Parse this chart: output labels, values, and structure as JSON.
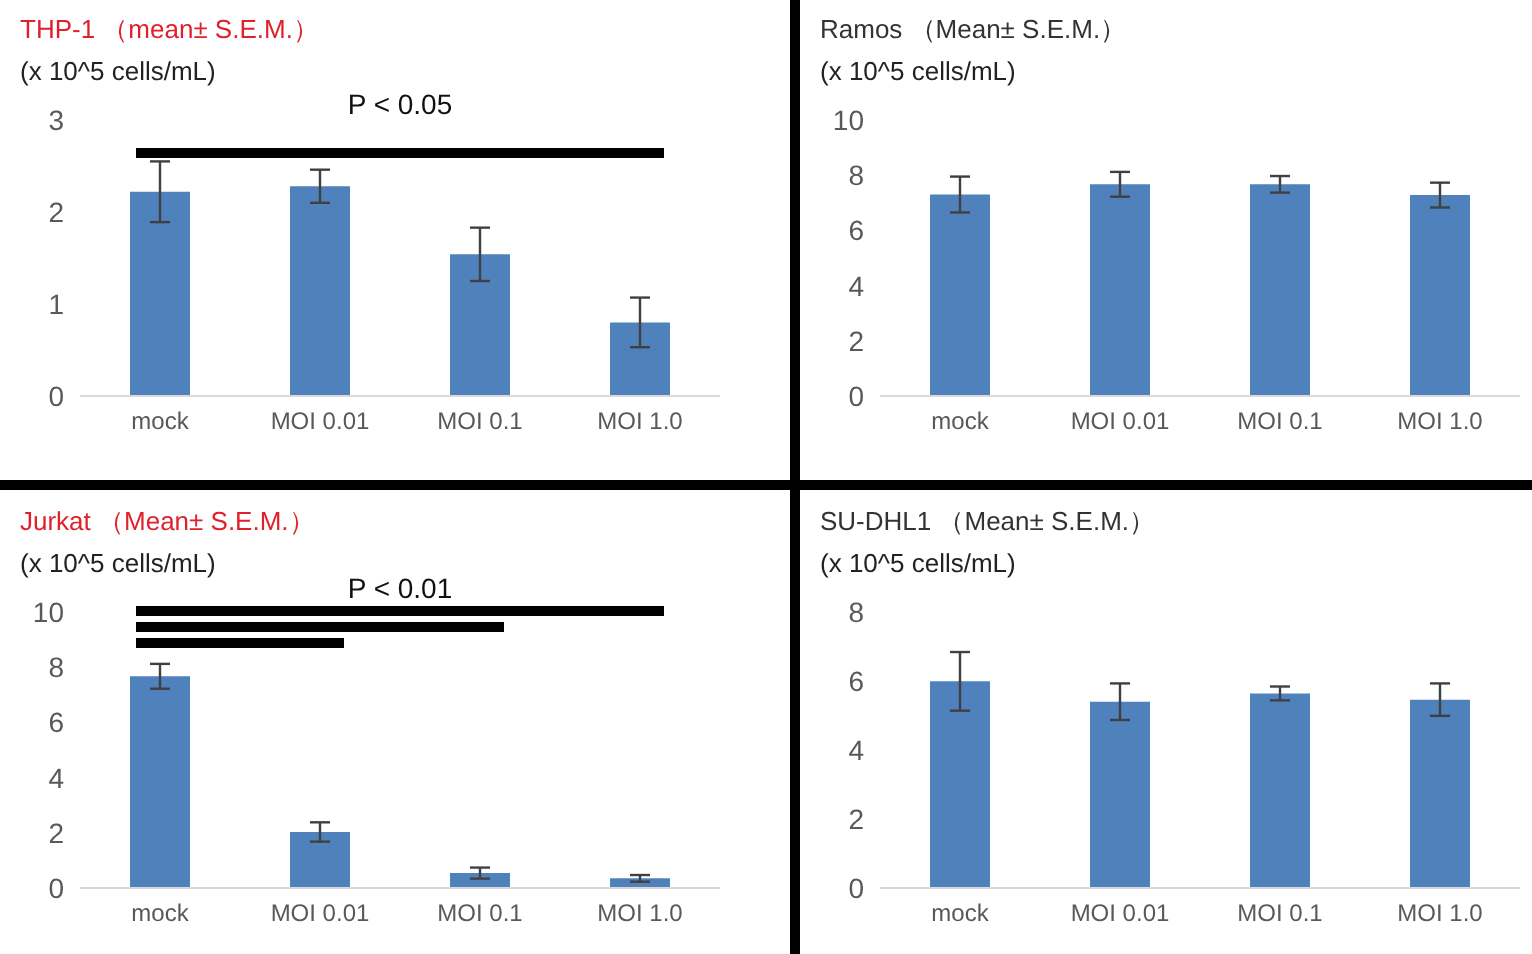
{
  "chart_data": [
    {
      "type": "bar",
      "title": "THP-1 （mean± S.E.M.）",
      "ylabel": "(x 10^5 cells/mL)",
      "categories": [
        "mock",
        "MOI 0.01",
        "MOI 0.1",
        "MOI 1.0"
      ],
      "values": [
        2.22,
        2.28,
        1.54,
        0.8
      ],
      "errors": [
        0.33,
        0.18,
        0.29,
        0.27
      ],
      "color": "#4f81bd",
      "ylim": [
        0,
        3
      ],
      "yticks": [
        0,
        1,
        2,
        3
      ],
      "annotations": [
        "P < 0.05"
      ],
      "grid": false,
      "legend": false
    },
    {
      "type": "bar",
      "title": "Ramos （Mean± S.E.M.）",
      "ylabel": "(x 10^5 cells/mL)",
      "categories": [
        "mock",
        "MOI 0.01",
        "MOI 0.1",
        "MOI 1.0"
      ],
      "values": [
        7.3,
        7.67,
        7.67,
        7.28
      ],
      "errors": [
        0.65,
        0.45,
        0.3,
        0.45
      ],
      "color": "#4f81bd",
      "ylim": [
        0,
        10
      ],
      "yticks": [
        0,
        2,
        4,
        6,
        8,
        10
      ],
      "grid": false,
      "legend": false
    },
    {
      "type": "bar",
      "title": "Jurkat （Mean± S.E.M.）",
      "ylabel": "(x 10^5 cells/mL)",
      "categories": [
        "mock",
        "MOI 0.01",
        "MOI 0.1",
        "MOI 1.0"
      ],
      "values": [
        7.67,
        2.03,
        0.54,
        0.35
      ],
      "errors": [
        0.45,
        0.35,
        0.2,
        0.12
      ],
      "color": "#4f81bd",
      "ylim": [
        0,
        10
      ],
      "yticks": [
        0,
        2,
        4,
        6,
        8,
        10
      ],
      "annotations": [
        "P < 0.01"
      ],
      "grid": false,
      "legend": false
    },
    {
      "type": "bar",
      "title": "SU-DHL1 （Mean± S.E.M.）",
      "ylabel": "(x 10^5 cells/mL)",
      "categories": [
        "mock",
        "MOI 0.01",
        "MOI 0.1",
        "MOI 1.0"
      ],
      "values": [
        5.99,
        5.4,
        5.64,
        5.46
      ],
      "errors": [
        0.85,
        0.53,
        0.2,
        0.47
      ],
      "color": "#4f81bd",
      "ylim": [
        0,
        8
      ],
      "yticks": [
        0,
        2,
        4,
        6,
        8
      ],
      "grid": false,
      "legend": false
    }
  ]
}
